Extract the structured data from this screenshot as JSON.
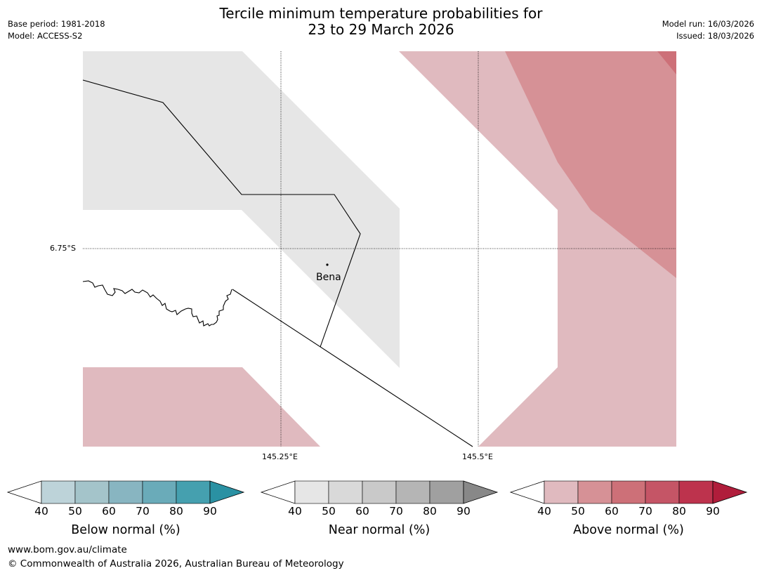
{
  "title_line1": "Tercile minimum temperature probabilities for",
  "title_line2": "23 to 29 March 2026",
  "base_period": "Base period: 1981-2018",
  "model": "Model: ACCESS-S2",
  "model_run": "Model run: 16/03/2026",
  "issued": "Issued: 18/03/2026",
  "map": {
    "lat_label": "6.75°S",
    "lon_labels": [
      "145.25°E",
      "145.5°E"
    ],
    "place": "Bena",
    "region_colors": {
      "near_normal_40_50": "#e6e6e6",
      "above_normal_40_50": "#e0babf",
      "above_normal_50_60": "#d69196",
      "above_normal_60_70": "#cd7078"
    }
  },
  "colorbars": [
    {
      "name": "below",
      "caption": "Below normal (%)",
      "ticks": [
        "40",
        "50",
        "60",
        "70",
        "80",
        "90"
      ],
      "colors": [
        "#bdd3d9",
        "#a4c4ca",
        "#88b5c1",
        "#6aabb9",
        "#45a0af",
        "#2a91a3"
      ]
    },
    {
      "name": "near",
      "caption": "Near normal (%)",
      "ticks": [
        "40",
        "50",
        "60",
        "70",
        "80",
        "90"
      ],
      "colors": [
        "#e6e6e6",
        "#d9d9d9",
        "#c9c9c9",
        "#b5b5b5",
        "#a0a0a0",
        "#888888"
      ]
    },
    {
      "name": "above",
      "caption": "Above normal (%)",
      "ticks": [
        "40",
        "50",
        "60",
        "70",
        "80",
        "90"
      ],
      "colors": [
        "#e0babf",
        "#d69196",
        "#cd7078",
        "#c55566",
        "#bd334d",
        "#b01d3b"
      ]
    }
  ],
  "footer_url": "www.bom.gov.au/climate",
  "footer_copyright": "© Commonwealth of Australia 2026, Australian Bureau of Meteorology"
}
